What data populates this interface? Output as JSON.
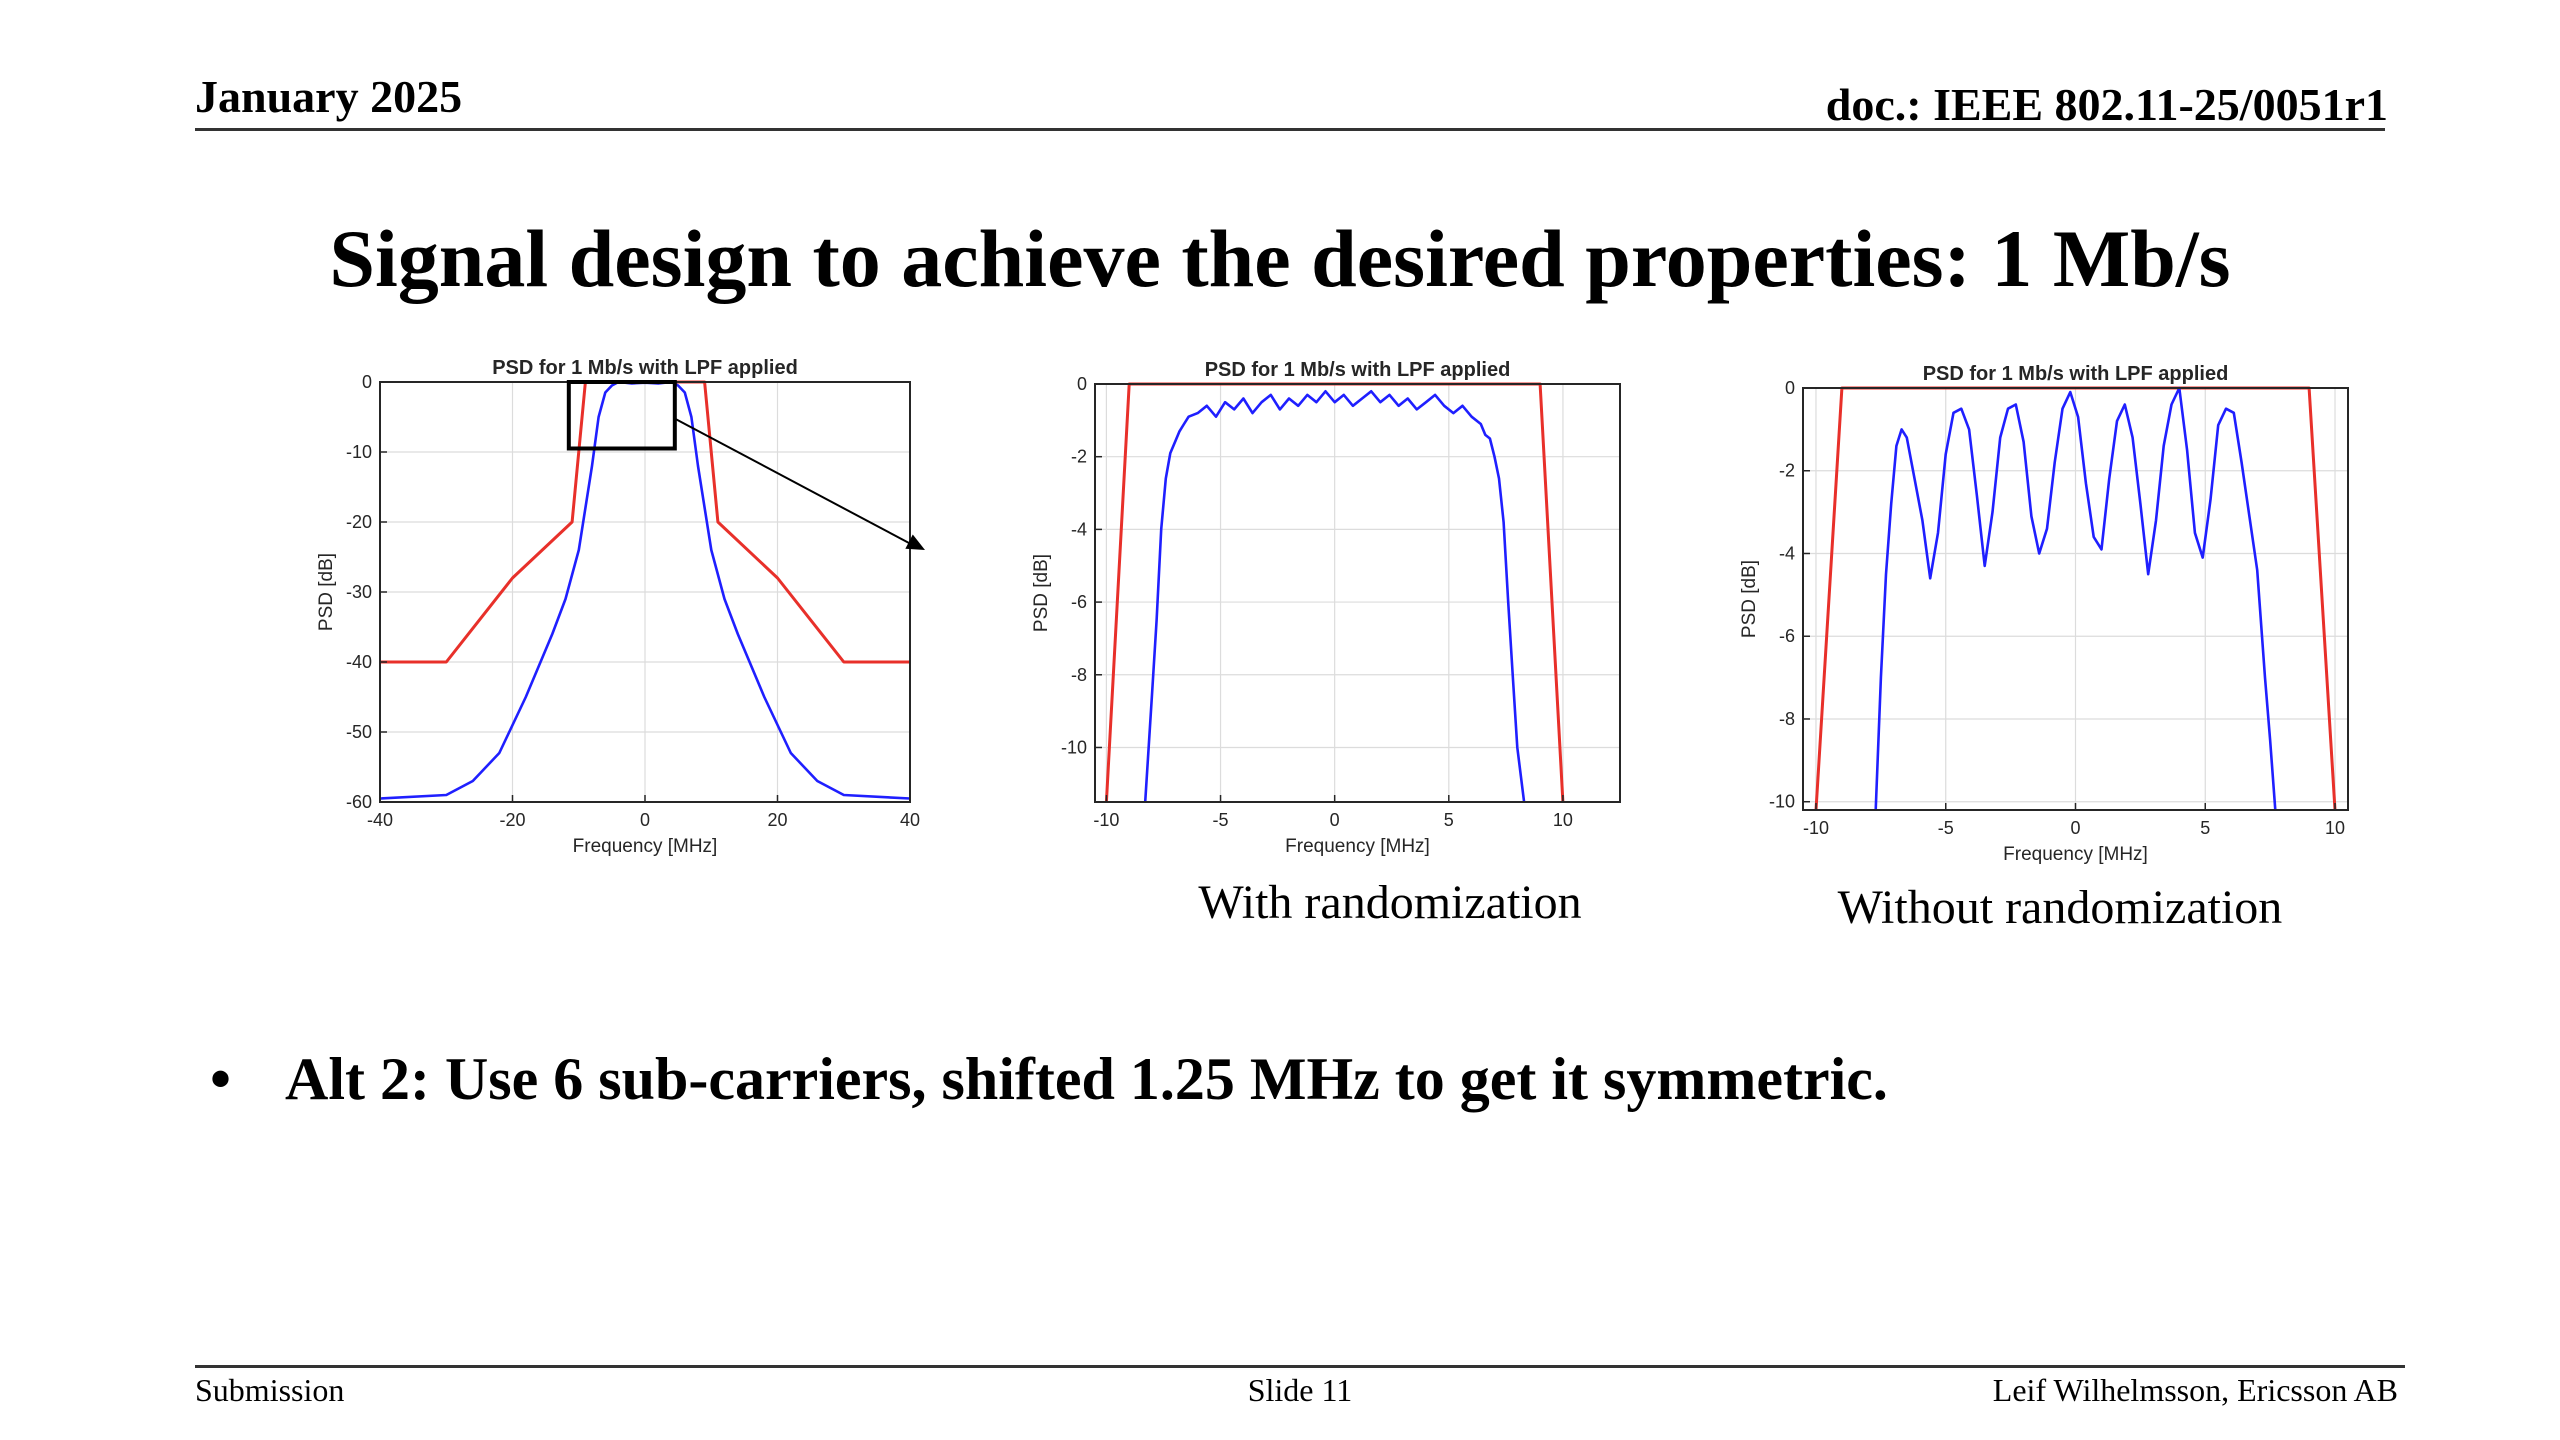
{
  "header": {
    "date": "January 2025",
    "doc": "doc.: IEEE 802.11-25/0051r1"
  },
  "slide": {
    "title": "Signal design to achieve the desired properties: 1 Mb/s",
    "bullet_marker": "•",
    "bullet": "Alt 2: Use 6 sub-carriers, shifted 1.25 MHz to get it symmetric."
  },
  "captions": {
    "with_randomization": "With randomization",
    "without_randomization": "Without randomization"
  },
  "footer": {
    "left": "Submission",
    "center": "Slide 11",
    "right": "Leif Wilhelmsson, Ericsson AB"
  },
  "colors": {
    "psd": "#1f1fff",
    "mask": "#e8302a"
  },
  "chart_data": [
    {
      "type": "line",
      "title": "PSD for 1 Mb/s with LPF applied",
      "xlabel": "Frequency [MHz]",
      "ylabel": "PSD [dB]",
      "xlim": [
        -40,
        40
      ],
      "ylim": [
        -60,
        0
      ],
      "xticks": [
        -40,
        -20,
        0,
        20,
        40
      ],
      "yticks": [
        0,
        -10,
        -20,
        -30,
        -40,
        -50,
        -60
      ],
      "grid": true,
      "zoom_box": {
        "x": [
          -11.5,
          4.5
        ],
        "y": [
          -9.5,
          0
        ]
      },
      "series": [
        {
          "role": "mask",
          "x": [
            -40,
            -30,
            -20,
            -11,
            -9,
            9,
            11,
            20,
            30,
            40
          ],
          "y": [
            -40,
            -40,
            -28,
            -20,
            0,
            0,
            -20,
            -28,
            -40,
            -40
          ]
        },
        {
          "role": "psd",
          "x": [
            -40,
            -30,
            -26,
            -22,
            -18,
            -14,
            -12,
            -10,
            -8,
            -7,
            -6,
            -5,
            -4,
            -2,
            0,
            2,
            4,
            5,
            6,
            7,
            8,
            10,
            12,
            14,
            18,
            22,
            26,
            30,
            40
          ],
          "y": [
            -59.5,
            -59,
            -57,
            -53,
            -45,
            -36,
            -31,
            -24,
            -12,
            -5,
            -1.5,
            -0.5,
            0,
            -0.2,
            -0.1,
            -0.2,
            0,
            -0.5,
            -1.5,
            -5,
            -12,
            -24,
            -31,
            -36,
            -45,
            -53,
            -57,
            -59,
            -59.5
          ]
        }
      ]
    },
    {
      "type": "line",
      "title": "PSD for 1 Mb/s with LPF applied",
      "xlabel": "Frequency [MHz]",
      "ylabel": "PSD [dB]",
      "xlim": [
        -10.5,
        12.5
      ],
      "ylim": [
        -11.5,
        0
      ],
      "xticks": [
        -10,
        -5,
        0,
        5,
        10
      ],
      "yticks": [
        0,
        -2,
        -4,
        -6,
        -8,
        -10
      ],
      "grid": true,
      "series": [
        {
          "role": "mask",
          "x": [
            -10,
            -9,
            9,
            10
          ],
          "y": [
            -11.5,
            0,
            0,
            -11.5
          ]
        },
        {
          "role": "psd",
          "x": [
            -8.3,
            -8.0,
            -7.8,
            -7.6,
            -7.4,
            -7.2,
            -7.0,
            -6.8,
            -6.6,
            -6.4,
            -6.0,
            -5.6,
            -5.2,
            -4.8,
            -4.4,
            -4.0,
            -3.6,
            -3.2,
            -2.8,
            -2.4,
            -2.0,
            -1.6,
            -1.2,
            -0.8,
            -0.4,
            0.0,
            0.4,
            0.8,
            1.2,
            1.6,
            2.0,
            2.4,
            2.8,
            3.2,
            3.6,
            4.0,
            4.4,
            4.8,
            5.2,
            5.6,
            6.0,
            6.4,
            6.6,
            6.8,
            7.0,
            7.2,
            7.4,
            7.6,
            7.8,
            8.0,
            8.3
          ],
          "y": [
            -11.5,
            -8.5,
            -6.5,
            -4.0,
            -2.6,
            -1.9,
            -1.6,
            -1.3,
            -1.1,
            -0.9,
            -0.8,
            -0.6,
            -0.9,
            -0.5,
            -0.7,
            -0.4,
            -0.8,
            -0.5,
            -0.3,
            -0.7,
            -0.4,
            -0.6,
            -0.3,
            -0.5,
            -0.2,
            -0.5,
            -0.3,
            -0.6,
            -0.4,
            -0.2,
            -0.5,
            -0.3,
            -0.6,
            -0.4,
            -0.7,
            -0.5,
            -0.3,
            -0.6,
            -0.8,
            -0.6,
            -0.9,
            -1.1,
            -1.4,
            -1.5,
            -2.0,
            -2.6,
            -3.8,
            -6.0,
            -8.0,
            -10.0,
            -11.5
          ]
        }
      ]
    },
    {
      "type": "line",
      "title": "PSD for 1 Mb/s with LPF applied",
      "xlabel": "Frequency [MHz]",
      "ylabel": "PSD [dB]",
      "xlim": [
        -10.5,
        10.5
      ],
      "ylim": [
        -10.2,
        0
      ],
      "xticks": [
        -10,
        -5,
        0,
        5,
        10
      ],
      "yticks": [
        0,
        -2,
        -4,
        -6,
        -8,
        -10
      ],
      "grid": true,
      "series": [
        {
          "role": "mask",
          "x": [
            -10,
            -9,
            9,
            10
          ],
          "y": [
            -10.2,
            0,
            0,
            -10.2
          ]
        },
        {
          "role": "psd",
          "x": [
            -7.7,
            -7.5,
            -7.3,
            -7.1,
            -6.9,
            -6.7,
            -6.5,
            -6.2,
            -5.9,
            -5.6,
            -5.3,
            -5.0,
            -4.7,
            -4.4,
            -4.1,
            -3.8,
            -3.5,
            -3.2,
            -2.9,
            -2.6,
            -2.3,
            -2.0,
            -1.7,
            -1.4,
            -1.1,
            -0.8,
            -0.5,
            -0.2,
            0.1,
            0.4,
            0.7,
            1.0,
            1.3,
            1.6,
            1.9,
            2.2,
            2.5,
            2.8,
            3.1,
            3.4,
            3.7,
            4.0,
            4.3,
            4.6,
            4.9,
            5.2,
            5.5,
            5.8,
            6.1,
            6.4,
            6.7,
            7.0,
            7.3,
            7.5,
            7.7
          ],
          "y": [
            -10.2,
            -7.0,
            -4.5,
            -2.8,
            -1.4,
            -1.0,
            -1.2,
            -2.2,
            -3.2,
            -4.6,
            -3.5,
            -1.6,
            -0.6,
            -0.5,
            -1.0,
            -2.6,
            -4.3,
            -3.0,
            -1.2,
            -0.5,
            -0.4,
            -1.3,
            -3.1,
            -4.0,
            -3.4,
            -1.8,
            -0.5,
            -0.1,
            -0.7,
            -2.3,
            -3.6,
            -3.9,
            -2.2,
            -0.8,
            -0.4,
            -1.2,
            -2.8,
            -4.5,
            -3.2,
            -1.4,
            -0.4,
            0.0,
            -1.5,
            -3.5,
            -4.1,
            -2.7,
            -0.9,
            -0.5,
            -0.6,
            -1.8,
            -3.1,
            -4.4,
            -7.0,
            -8.5,
            -10.2
          ]
        }
      ]
    }
  ]
}
